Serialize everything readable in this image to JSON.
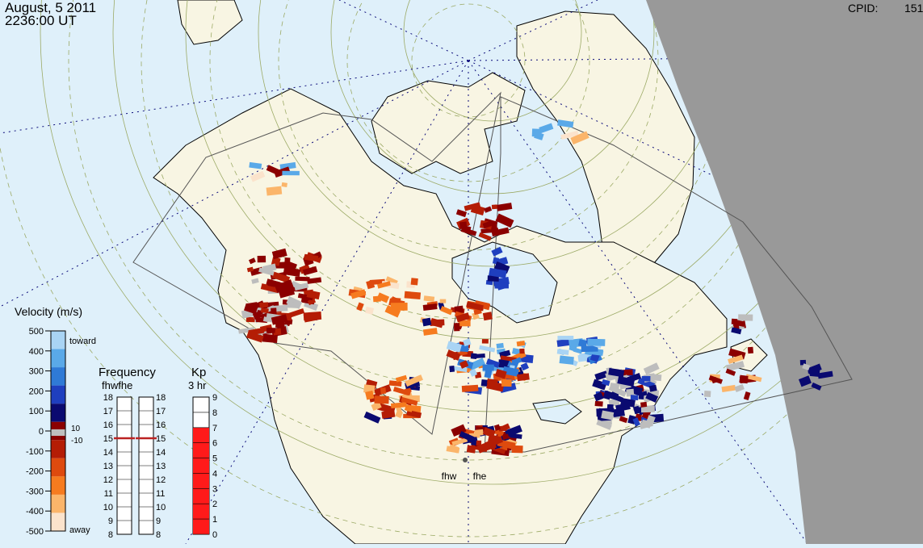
{
  "header": {
    "date": "August, 5 2011",
    "time": "2236:00 UT",
    "cpid_label": "CPID:",
    "cpid_value": "151"
  },
  "radars": [
    {
      "code": "fhw"
    },
    {
      "code": "fhe"
    }
  ],
  "velocity_scale": {
    "title": "Velocity (m/s)",
    "ticks": [
      "500",
      "400",
      "300",
      "200",
      "100",
      "0",
      "-100",
      "-200",
      "-300",
      "-400",
      "-500"
    ],
    "toward_label": "toward",
    "away_label": "away",
    "gs_plus": "10",
    "gs_minus": "-10",
    "colors": [
      "#fbe3cc",
      "#fbb56a",
      "#f67b1f",
      "#de4a0e",
      "#b41d05",
      "#8b0000",
      "#0a0a70",
      "#1f3fbf",
      "#2f7ad6",
      "#5aa9e8",
      "#a9d4f4"
    ]
  },
  "frequency_panel": {
    "title": "Frequency",
    "subtitle": "fhwfhe",
    "ticks": [
      "18",
      "17",
      "16",
      "15",
      "14",
      "13",
      "12",
      "11",
      "10",
      "9",
      "8"
    ],
    "fhw_mhz": 15,
    "fhe_mhz": 15
  },
  "kp_panel": {
    "title": "Kp",
    "subtitle": "3 hr",
    "ticks": [
      "9",
      "8",
      "7",
      "6",
      "5",
      "4",
      "3",
      "2",
      "1",
      "0"
    ],
    "value": 7
  },
  "map_colors": {
    "ocean": "#dff0fa",
    "land": "#f8f5e3",
    "night": "#999999",
    "grid": "#9caa66"
  }
}
